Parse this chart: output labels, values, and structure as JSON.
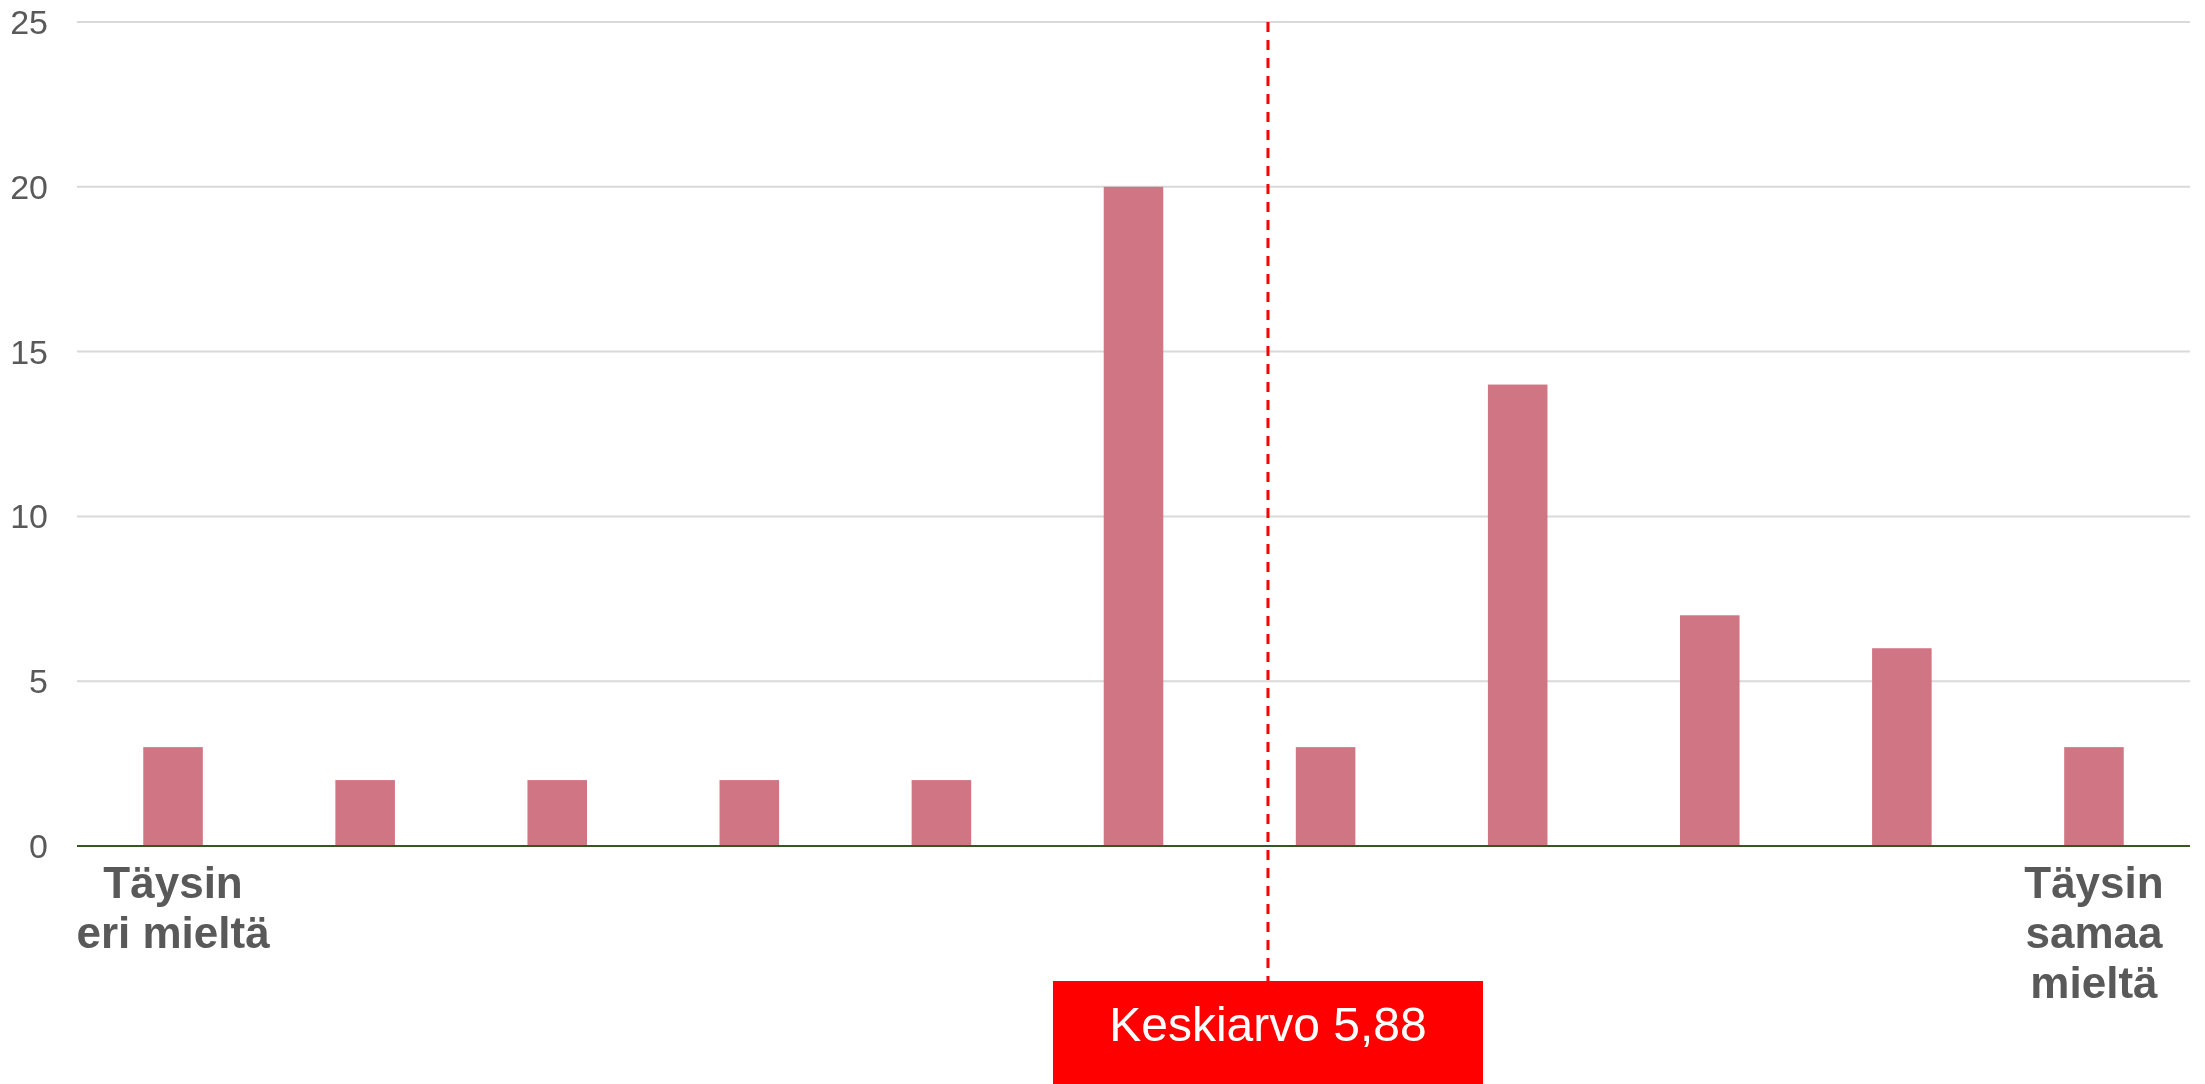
{
  "chart_data": {
    "type": "bar",
    "categories": [
      "Täysin eri mieltä",
      null,
      null,
      null,
      null,
      null,
      null,
      null,
      null,
      null,
      "Täysin samaa mieltä"
    ],
    "series": [
      {
        "color": "#d07583",
        "values": [
          3,
          2,
          2,
          2,
          2,
          20,
          3,
          14,
          7,
          6,
          3
        ]
      }
    ],
    "ylim": [
      0,
      25
    ],
    "yticks": [
      0,
      5,
      10,
      15,
      20,
      25
    ],
    "grid": "y",
    "annotations": [
      "Keskiarvo 5,88"
    ]
  }
}
